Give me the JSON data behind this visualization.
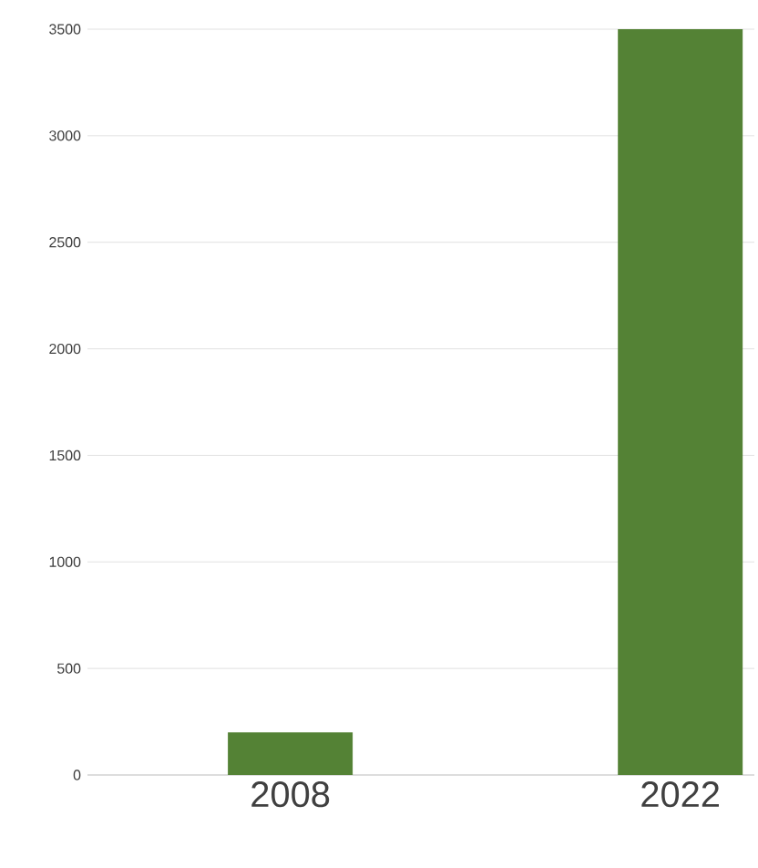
{
  "chart_data": {
    "type": "bar",
    "categories": [
      "2008",
      "2022"
    ],
    "values": [
      200,
      3500
    ],
    "color": "#548235",
    "ylim": [
      0,
      3500
    ],
    "yticks": [
      0,
      500,
      1000,
      1500,
      2000,
      2500,
      3000,
      3500
    ],
    "grid": "y"
  }
}
